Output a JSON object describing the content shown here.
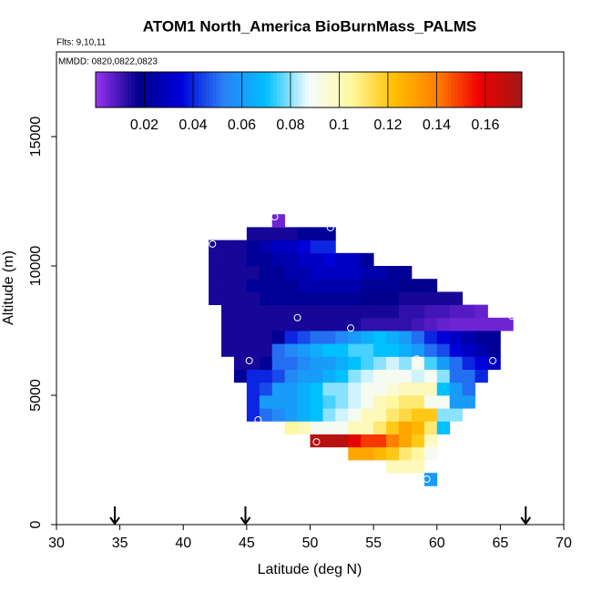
{
  "chart_data": {
    "type": "heatmap",
    "title": "ATOM1 North_America BioBurnMass_PALMS",
    "subtitle": "Flts: 9,10,11",
    "annotation": "MMDD: 0820,0822,0823",
    "x_label": "Latitude (deg N)",
    "y_label": "Altitude (m)",
    "xlim": [
      30,
      70
    ],
    "xticks": [
      30,
      35,
      40,
      45,
      50,
      55,
      60,
      65,
      70
    ],
    "ylim": [
      0,
      18275
    ],
    "yticks": [
      0,
      5000,
      10000,
      15000
    ],
    "clim": [
      0,
      0.175
    ],
    "cticks": [
      0.02,
      0.04,
      0.06,
      0.08,
      0.1,
      0.12,
      0.14,
      0.16
    ],
    "colors": [
      "#9a32f0",
      "#00008b",
      "#0000d8",
      "#2a80f5",
      "#00c0ff",
      "#f4fbff",
      "#fff8a0",
      "#ffc000",
      "#ff8000",
      "#f00000",
      "#a01818"
    ],
    "x": [
      42.5,
      43.5,
      44.5,
      45.5,
      46.5,
      47.5,
      48.5,
      49.5,
      50.5,
      51.5,
      52.5,
      53.5,
      54.5,
      55.5,
      56.5,
      57.5,
      58.5,
      59.5,
      60.5,
      61.5,
      62.5,
      63.5,
      64.5,
      65.5
    ],
    "y": [
      1750,
      2250,
      2750,
      3250,
      3750,
      4250,
      4750,
      5250,
      5750,
      6250,
      6750,
      7250,
      7750,
      8250,
      8750,
      9250,
      9750,
      10250,
      10750,
      11250,
      11750
    ],
    "z": [
      [
        null,
        null,
        null,
        null,
        null,
        null,
        null,
        null,
        null,
        null,
        null,
        null,
        null,
        null,
        null,
        null,
        null,
        0.06,
        null,
        null,
        null,
        null,
        null,
        null
      ],
      [
        null,
        null,
        null,
        null,
        null,
        null,
        null,
        null,
        null,
        null,
        null,
        null,
        null,
        null,
        0.1,
        0.1,
        0.1,
        null,
        null,
        null,
        null,
        null,
        null,
        null
      ],
      [
        null,
        null,
        null,
        null,
        null,
        null,
        null,
        null,
        null,
        null,
        null,
        0.13,
        0.13,
        0.125,
        0.12,
        0.11,
        0.105,
        0.09,
        null,
        null,
        null,
        null,
        null,
        null
      ],
      [
        null,
        null,
        null,
        null,
        null,
        null,
        null,
        null,
        0.17,
        0.17,
        0.17,
        0.16,
        0.15,
        0.15,
        0.14,
        0.13,
        0.12,
        0.1,
        null,
        null,
        null,
        null,
        null,
        null
      ],
      [
        null,
        null,
        null,
        null,
        null,
        null,
        0.105,
        0.1,
        0.09,
        0.09,
        0.09,
        0.1,
        0.1,
        0.11,
        0.12,
        0.13,
        0.125,
        0.11,
        0.07,
        null,
        null,
        null,
        null,
        null
      ],
      [
        null,
        null,
        null,
        0.04,
        0.05,
        0.055,
        0.06,
        0.065,
        0.07,
        0.08,
        0.085,
        0.09,
        0.1,
        0.1,
        0.11,
        0.115,
        0.12,
        0.12,
        0.08,
        0.08,
        null,
        null,
        null,
        null
      ],
      [
        null,
        null,
        null,
        0.04,
        0.06,
        0.06,
        0.06,
        0.065,
        0.07,
        0.075,
        0.08,
        0.085,
        0.09,
        0.1,
        0.105,
        0.11,
        0.11,
        0.09,
        0.09,
        0.06,
        0.06,
        null,
        null,
        null
      ],
      [
        null,
        null,
        null,
        0.04,
        0.045,
        0.06,
        0.06,
        0.065,
        0.07,
        0.08,
        0.08,
        0.085,
        0.09,
        0.09,
        0.095,
        0.1,
        0.1,
        0.1,
        0.07,
        0.06,
        0.05,
        null,
        null,
        null
      ],
      [
        null,
        null,
        0.02,
        0.04,
        0.04,
        0.045,
        0.055,
        0.06,
        0.06,
        0.065,
        0.07,
        0.08,
        0.085,
        0.09,
        0.09,
        0.09,
        0.085,
        0.09,
        0.08,
        0.05,
        0.05,
        0.04,
        null,
        null
      ],
      [
        null,
        null,
        0.015,
        0.015,
        0.02,
        0.05,
        0.05,
        0.055,
        0.06,
        0.06,
        0.065,
        0.07,
        0.075,
        0.08,
        0.085,
        0.08,
        0.09,
        0.075,
        0.06,
        0.05,
        0.04,
        0.035,
        0.03,
        null
      ],
      [
        null,
        0.015,
        0.015,
        0.015,
        0.015,
        0.05,
        0.055,
        0.06,
        0.065,
        0.07,
        0.07,
        0.075,
        0.075,
        0.07,
        0.07,
        0.065,
        0.06,
        0.05,
        0.045,
        0.035,
        0.03,
        0.025,
        0.02,
        null
      ],
      [
        null,
        0.015,
        0.015,
        0.015,
        0.015,
        0.02,
        0.04,
        0.045,
        0.05,
        0.05,
        0.055,
        0.06,
        0.065,
        0.07,
        0.065,
        0.06,
        0.05,
        0.04,
        0.035,
        0.03,
        0.025,
        0.02,
        0.02,
        null
      ],
      [
        null,
        0.015,
        0.015,
        0.015,
        0.015,
        0.015,
        0.015,
        0.015,
        0.015,
        0.015,
        0.015,
        0.015,
        0.012,
        0.012,
        0.012,
        0.012,
        0.01,
        0.008,
        0.006,
        0.005,
        0.005,
        0.005,
        0.005,
        0.005
      ],
      [
        null,
        0.015,
        0.015,
        0.015,
        0.015,
        0.015,
        0.015,
        0.015,
        0.015,
        0.015,
        0.015,
        0.015,
        0.015,
        0.015,
        0.015,
        0.012,
        0.012,
        0.01,
        0.01,
        0.008,
        0.008,
        0.006,
        null,
        null
      ],
      [
        0.015,
        0.015,
        0.015,
        0.015,
        0.02,
        0.02,
        0.02,
        0.02,
        0.02,
        0.02,
        0.02,
        0.02,
        0.018,
        0.018,
        0.018,
        0.015,
        0.015,
        0.015,
        0.015,
        0.015,
        null,
        null,
        null,
        null
      ],
      [
        0.015,
        0.015,
        0.015,
        0.02,
        0.02,
        0.02,
        0.02,
        0.025,
        0.025,
        0.025,
        0.025,
        0.025,
        0.02,
        0.02,
        0.02,
        0.018,
        0.018,
        0.018,
        null,
        null,
        null,
        null,
        null,
        null
      ],
      [
        0.015,
        0.015,
        0.015,
        0.015,
        0.02,
        0.02,
        0.025,
        0.025,
        0.03,
        0.03,
        0.03,
        0.03,
        0.025,
        0.025,
        0.02,
        0.02,
        null,
        null,
        null,
        null,
        null,
        null,
        null,
        null
      ],
      [
        0.015,
        0.015,
        0.015,
        0.02,
        0.02,
        0.025,
        0.025,
        0.03,
        0.03,
        0.035,
        0.03,
        0.03,
        0.02,
        null,
        null,
        null,
        null,
        null,
        null,
        null,
        null,
        null,
        null,
        null
      ],
      [
        0.015,
        0.015,
        0.015,
        0.02,
        0.025,
        0.03,
        0.03,
        0.035,
        0.04,
        0.04,
        null,
        null,
        null,
        null,
        null,
        null,
        null,
        null,
        null,
        null,
        null,
        null,
        null,
        null
      ],
      [
        null,
        null,
        null,
        0.015,
        0.015,
        0.015,
        0.015,
        0.02,
        0.02,
        0.02,
        null,
        null,
        null,
        null,
        null,
        null,
        null,
        null,
        null,
        null,
        null,
        null,
        null,
        null
      ],
      [
        null,
        null,
        null,
        null,
        null,
        0.005,
        null,
        null,
        null,
        null,
        null,
        null,
        null,
        null,
        null,
        null,
        null,
        null,
        null,
        null,
        null,
        null,
        null,
        null
      ]
    ],
    "points": {
      "x": [
        42.3,
        47.2,
        51.6,
        49.0,
        53.2,
        45.2,
        58.4,
        64.4,
        65.9,
        45.9,
        50.5,
        59.4,
        59.2
      ],
      "y": [
        10850,
        11900,
        11480,
        8000,
        7600,
        6340,
        6400,
        6340,
        8060,
        4050,
        3200,
        3060,
        1760
      ]
    },
    "arrows": [
      34.6,
      44.9,
      67
    ]
  }
}
